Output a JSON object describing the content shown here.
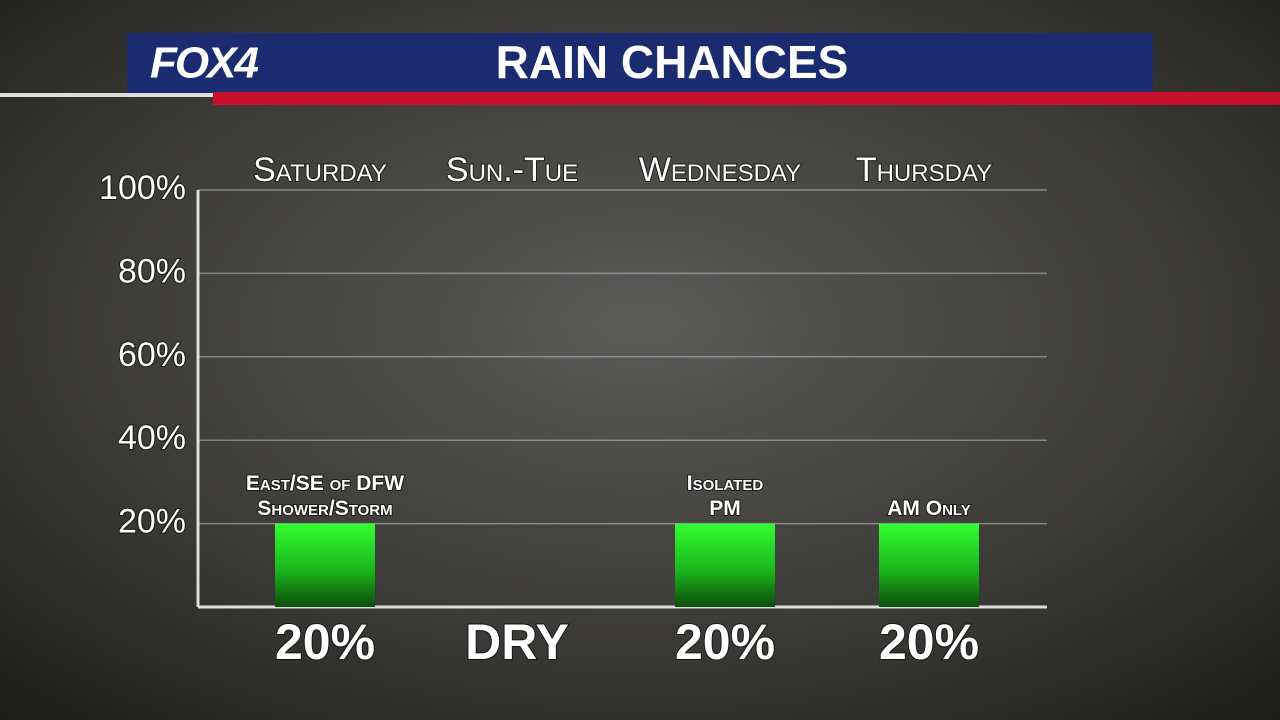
{
  "brand": "FOX4",
  "chart_data": {
    "type": "bar",
    "title": "RAIN CHANCES",
    "categories": [
      "Saturday",
      "Sun.-Tue",
      "Wednesday",
      "Thursday"
    ],
    "values": [
      20,
      null,
      20,
      20
    ],
    "value_labels": [
      "20%",
      "DRY",
      "20%",
      "20%"
    ],
    "bar_notes": [
      [
        "East/SE of DFW",
        "Shower/Storm"
      ],
      null,
      [
        "Isolated",
        "PM"
      ],
      [
        "AM Only"
      ]
    ],
    "color": "#22e622",
    "ylim": [
      0,
      100
    ],
    "yticks": [
      {
        "value": 20,
        "label": "20%"
      },
      {
        "value": 40,
        "label": "40%"
      },
      {
        "value": 60,
        "label": "60%"
      },
      {
        "value": 80,
        "label": "80%"
      },
      {
        "value": 100,
        "label": "100%"
      }
    ],
    "grid": true
  }
}
